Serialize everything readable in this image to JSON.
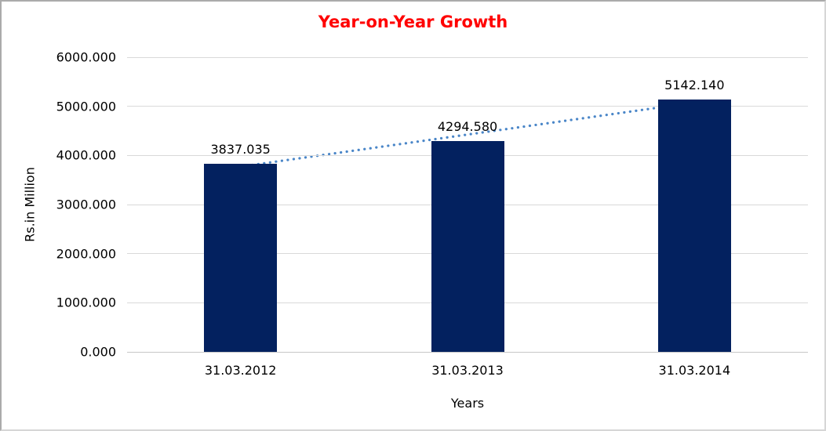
{
  "chart_data": {
    "type": "bar",
    "title": "Year-on-Year Growth",
    "xlabel": "Years",
    "ylabel": "Rs.in Million",
    "categories": [
      "31.03.2012",
      "31.03.2013",
      "31.03.2014"
    ],
    "values": [
      3837.035,
      4294.58,
      5142.14
    ],
    "value_labels": [
      "3837.035",
      "4294.580",
      "5142.140"
    ],
    "ytick_labels": [
      "6000.000",
      "5000.000",
      "4000.000",
      "3000.000",
      "2000.000",
      "1000.000",
      "0.000"
    ],
    "yticks": [
      6000,
      5000,
      4000,
      3000,
      2000,
      1000,
      0
    ],
    "ylim": [
      0,
      6000
    ],
    "grid": true,
    "legend": false,
    "trendline": {
      "type": "linear",
      "style": "dotted"
    },
    "colors": {
      "bar": "#03215F",
      "trendline": "#4A86C8",
      "title": "#FF0000",
      "gridline": "#D9D9D9",
      "axis_line": "#C6C6C6",
      "text": "#000000"
    }
  }
}
